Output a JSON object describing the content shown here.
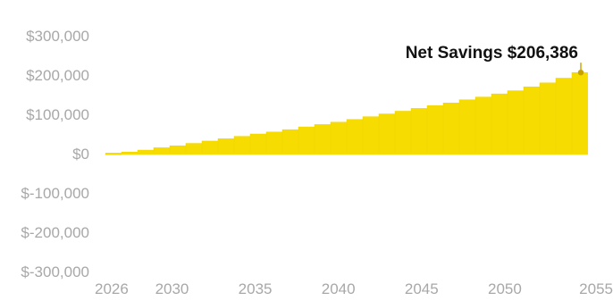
{
  "chart_data": {
    "type": "bar",
    "title": "",
    "xlabel": "",
    "ylabel": "",
    "x": [
      2026,
      2027,
      2028,
      2029,
      2030,
      2031,
      2032,
      2033,
      2034,
      2035,
      2036,
      2037,
      2038,
      2039,
      2040,
      2041,
      2042,
      2043,
      2044,
      2045,
      2046,
      2047,
      2048,
      2049,
      2050,
      2051,
      2052,
      2053,
      2054,
      2055
    ],
    "series": [
      {
        "values": [
          0,
          4000,
          9000,
          15000,
          20000,
          26000,
          32000,
          38000,
          44000,
          50000,
          55000,
          61000,
          68000,
          74000,
          80000,
          87000,
          94000,
          101000,
          108000,
          115000,
          122000,
          129000,
          137000,
          144000,
          152000,
          160000,
          170000,
          180000,
          192000,
          206386
        ]
      }
    ],
    "xlim": [
      2026,
      2055
    ],
    "ylim": [
      -300000,
      300000
    ],
    "x_ticks": [
      {
        "value": 2026,
        "label": "2026"
      },
      {
        "value": 2030,
        "label": "2030"
      },
      {
        "value": 2035,
        "label": "2035"
      },
      {
        "value": 2040,
        "label": "2040"
      },
      {
        "value": 2045,
        "label": "2045"
      },
      {
        "value": 2050,
        "label": "2050"
      },
      {
        "value": 2055,
        "label": "2055"
      }
    ],
    "y_ticks": [
      {
        "value": 300000,
        "label": "$300,000"
      },
      {
        "value": 200000,
        "label": "$200,000"
      },
      {
        "value": 100000,
        "label": "$100,000"
      },
      {
        "value": 0,
        "label": "$0"
      },
      {
        "value": -100000,
        "label": "$-100,000"
      },
      {
        "value": -200000,
        "label": "$-200,000"
      },
      {
        "value": -300000,
        "label": "$-300,000"
      }
    ],
    "annotation": {
      "text": "Net Savings $206,386",
      "x": 2055,
      "y": 206386
    },
    "grid": false,
    "legend": "none",
    "colors": {
      "bar": "#f6dc00",
      "bar_edge": "#eed200",
      "annotation_marker": "#c6a100",
      "tick_text": "#a8a8a8"
    }
  }
}
